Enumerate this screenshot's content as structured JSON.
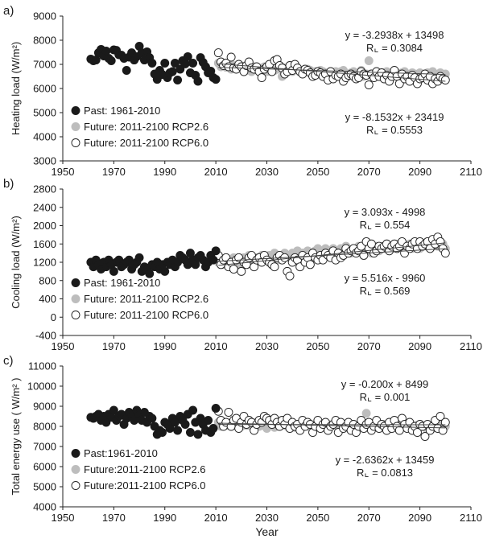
{
  "chart_data": [
    {
      "type": "scatter",
      "panel_label": "a)",
      "ylabel": "Heating load (W/m²)",
      "xlim": [
        1950,
        2110
      ],
      "ylim": [
        3000,
        9000
      ],
      "xticks": [
        1950,
        1970,
        1990,
        2010,
        2030,
        2050,
        2070,
        2090,
        2110
      ],
      "yticks": [
        3000,
        4000,
        5000,
        6000,
        7000,
        8000,
        9000
      ],
      "legend": [
        "Past: 1961-2010",
        "Future: 2011-2100 RCP2.6",
        "Future: 2011-2100 RCP6.0"
      ],
      "annotations": [
        {
          "eq": "y = -3.2938x + 13498",
          "r": "R⌞ = 0.3084"
        },
        {
          "eq": "y = -8.1532x + 23419",
          "r": "R⌞ = 0.5553"
        }
      ],
      "trend_lines": [
        {
          "x": [
            2011,
            2100
          ],
          "y": [
            6874,
            6581
          ]
        },
        {
          "x": [
            2011,
            2100
          ],
          "y": [
            7024,
            6298
          ]
        }
      ],
      "past": {
        "x_start": 1961,
        "values": [
          7220,
          7150,
          7180,
          7480,
          7620,
          7350,
          7550,
          7250,
          7150,
          7600,
          7580,
          7400,
          7380,
          7250,
          6750,
          7300,
          7480,
          7180,
          7320,
          7750,
          7480,
          7180,
          7520,
          7280,
          7050,
          6600,
          6380,
          6750,
          6580,
          7050,
          6450,
          6650,
          6700,
          7050,
          6350,
          6800,
          7150,
          7020,
          7320,
          6650,
          7050,
          6550,
          6300,
          7280,
          7080,
          6900,
          6650,
          6720,
          6450,
          6380
        ]
      },
      "rcp26": {
        "x_start": 2011,
        "values": [
          7050,
          6900,
          6950,
          6880,
          7050,
          6800,
          6950,
          6900,
          6850,
          6920,
          6800,
          6750,
          6880,
          6700,
          6900,
          6800,
          6750,
          6850,
          6900,
          6700,
          6850,
          6800,
          6750,
          6800,
          6900,
          6500,
          6850,
          6750,
          6800,
          6700,
          6800,
          6850,
          6750,
          6650,
          6700,
          6800,
          6750,
          6650,
          6700,
          6600,
          6750,
          6700,
          6650,
          6600,
          6700,
          6650,
          6700,
          6600,
          6700,
          6750,
          6600,
          6550,
          6650,
          6700,
          6600,
          6650,
          6750,
          6500,
          6600,
          7150,
          6600,
          6550,
          6650,
          6600,
          6550,
          6650,
          6700,
          6600,
          6500,
          6550,
          6650,
          6600,
          6650,
          6700,
          6500,
          6550,
          6650,
          6600,
          6550,
          6650,
          6600,
          6550,
          6650,
          6500,
          6700,
          6600,
          6550,
          6650,
          6550,
          6600
        ]
      },
      "rcp60": {
        "x_start": 2011,
        "values": [
          7480,
          7100,
          6950,
          7050,
          6900,
          7300,
          6850,
          6800,
          7000,
          6900,
          6700,
          6950,
          7100,
          6850,
          6800,
          6900,
          6700,
          6450,
          6800,
          6900,
          7000,
          6700,
          7150,
          7200,
          6950,
          6850,
          6600,
          6700,
          6950,
          6750,
          7000,
          6850,
          6700,
          6600,
          6800,
          6750,
          6650,
          6500,
          6550,
          6700,
          6650,
          6500,
          6600,
          6350,
          6700,
          6400,
          6550,
          6500,
          6600,
          6300,
          6450,
          6550,
          6600,
          6500,
          6400,
          6450,
          6700,
          6600,
          6550,
          6150,
          6600,
          6450,
          6700,
          6500,
          6650,
          6400,
          6550,
          6300,
          6500,
          6750,
          6500,
          6200,
          6600,
          6400,
          6500,
          6300,
          6550,
          6450,
          6200,
          6400,
          6450,
          6600,
          6350,
          6500,
          6200,
          6400,
          6300,
          6500,
          6400,
          6350
        ]
      }
    },
    {
      "type": "scatter",
      "panel_label": "b)",
      "ylabel": "Cooling load (W/m²)",
      "xlim": [
        1950,
        2110
      ],
      "ylim": [
        -400,
        2800
      ],
      "xticks": [
        1950,
        1970,
        1990,
        2010,
        2030,
        2050,
        2070,
        2090,
        2110
      ],
      "yticks": [
        -400,
        0,
        400,
        800,
        1200,
        1600,
        2000,
        2400,
        2800
      ],
      "legend": [
        "Past: 1961-2010",
        "Future: 2011-2100 RCP2.6",
        "Future: 2011-2100 RCP6.0"
      ],
      "annotations": [
        {
          "eq": "y = 3.093x - 4998",
          "r": "R⌞ = 0.554"
        },
        {
          "eq": "y = 5.516x - 9960",
          "r": "R⌞ = 0.569"
        }
      ],
      "trend_lines": [
        {
          "x": [
            2011,
            2100
          ],
          "y": [
            1221,
            1497
          ]
        },
        {
          "x": [
            2011,
            2100
          ],
          "y": [
            1131,
            1624
          ]
        }
      ],
      "past": {
        "x_start": 1961,
        "values": [
          1200,
          1100,
          1250,
          1150,
          1050,
          1200,
          1100,
          1250,
          1150,
          1000,
          1200,
          1250,
          1100,
          1150,
          1200,
          1250,
          1050,
          1150,
          1200,
          1300,
          1000,
          1100,
          1050,
          950,
          1150,
          1100,
          1200,
          1050,
          1150,
          1000,
          1200,
          1150,
          1250,
          1100,
          1200,
          1350,
          1300,
          1250,
          1150,
          1400,
          1250,
          1150,
          1300,
          1350,
          1250,
          1100,
          1200,
          1350,
          1250,
          1450
        ]
      },
      "rcp26": {
        "x_start": 2011,
        "values": [
          1200,
          1250,
          1150,
          1300,
          1200,
          1250,
          1300,
          1200,
          1150,
          1250,
          1300,
          1200,
          1350,
          1200,
          1250,
          1300,
          1250,
          1350,
          1300,
          1250,
          1350,
          1300,
          1400,
          1250,
          1350,
          1300,
          1400,
          1350,
          1300,
          1400,
          1350,
          1450,
          1300,
          1400,
          1350,
          1450,
          1400,
          1350,
          1450,
          1500,
          1350,
          1400,
          1500,
          1450,
          1400,
          1500,
          1350,
          1450,
          1500,
          1400,
          1550,
          1450,
          1400,
          1500,
          1450,
          1550,
          1500,
          1450,
          1500,
          1550,
          1400,
          1500,
          1550,
          1450,
          1500,
          1550,
          1600,
          1450,
          1500,
          1550,
          1500,
          1600,
          1550,
          1450,
          1550,
          1600,
          1500,
          1550,
          1600,
          1500,
          1550,
          1600,
          1650,
          1500,
          1550,
          1600,
          1550,
          1650,
          1600,
          1500
        ]
      },
      "rcp60": {
        "x_start": 2011,
        "values": [
          1350,
          1150,
          1250,
          1300,
          1100,
          1200,
          1050,
          1250,
          1300,
          1000,
          1200,
          1150,
          1300,
          1350,
          1100,
          1250,
          1300,
          1200,
          1350,
          1250,
          1200,
          1150,
          1100,
          1300,
          1350,
          1250,
          1300,
          1000,
          900,
          1200,
          1300,
          1250,
          1100,
          1350,
          1200,
          1300,
          1150,
          1400,
          1300,
          1250,
          1350,
          1250,
          1400,
          1350,
          1300,
          1450,
          1250,
          1400,
          1300,
          1350,
          1500,
          1400,
          1450,
          1500,
          1400,
          1450,
          1550,
          1350,
          1650,
          1500,
          1600,
          1400,
          1450,
          1550,
          1500,
          1550,
          1600,
          1450,
          1550,
          1600,
          1500,
          1550,
          1650,
          1400,
          1550,
          1500,
          1600,
          1650,
          1500,
          1650,
          1550,
          1600,
          1650,
          1500,
          1700,
          1600,
          1750,
          1650,
          1500,
          1400
        ]
      }
    },
    {
      "type": "scatter",
      "panel_label": "c)",
      "ylabel": "Total energy use ( W/m² )",
      "xlim": [
        1950,
        2110
      ],
      "ylim": [
        4000,
        11000
      ],
      "xticks": [
        1950,
        1970,
        1990,
        2010,
        2030,
        2050,
        2070,
        2090,
        2110
      ],
      "yticks": [
        4000,
        5000,
        6000,
        7000,
        8000,
        9000,
        10000,
        11000
      ],
      "xlabel": "Year",
      "legend": [
        "Past:1961-2010",
        "Future:2011-2100 RCP2.6",
        "Future:2011-2100 RCP6.0"
      ],
      "annotations": [
        {
          "eq": "y = -0.200x + 8499",
          "r": "R⌞ = 0.001"
        },
        {
          "eq": "y = -2.6362x + 13459",
          "r": "R⌞ = 0.0813"
        }
      ],
      "trend_lines": [
        {
          "x": [
            2011,
            2100
          ],
          "y": [
            8097,
            8079
          ]
        },
        {
          "x": [
            2011,
            2100
          ],
          "y": [
            8158,
            7923
          ]
        }
      ],
      "past": {
        "x_start": 1961,
        "values": [
          8450,
          8400,
          8500,
          8600,
          8300,
          8500,
          8200,
          8600,
          8450,
          8800,
          8300,
          8500,
          8600,
          8100,
          8400,
          8700,
          8500,
          8300,
          8800,
          8600,
          8300,
          8700,
          8200,
          8500,
          8400,
          8000,
          7600,
          7800,
          7700,
          8200,
          8100,
          7900,
          8400,
          8200,
          7800,
          8500,
          8300,
          8100,
          8600,
          7700,
          8800,
          8200,
          7600,
          8400,
          8100,
          7800,
          8300,
          7700,
          7900,
          8900
        ]
      },
      "rcp26": {
        "x_start": 2011,
        "values": [
          8200,
          8000,
          8100,
          8050,
          8150,
          8000,
          8100,
          8050,
          8200,
          8000,
          8100,
          8050,
          8150,
          8000,
          8100,
          8200,
          8000,
          8050,
          8100,
          7900,
          8050,
          8150,
          7950,
          8100,
          8000,
          8050,
          8150,
          8000,
          8100,
          8050,
          7950,
          8100,
          8000,
          8050,
          8150,
          8000,
          8100,
          7900,
          8050,
          8100,
          8000,
          8050,
          7950,
          8100,
          8000,
          8050,
          8100,
          7950,
          8050,
          8000,
          8100,
          7950,
          8050,
          8100,
          8000,
          8050,
          8100,
          7950,
          8650,
          8000,
          8050,
          8100,
          8000,
          7950,
          8050,
          8100,
          8000,
          8050,
          7950,
          8000,
          8100,
          8050,
          7950,
          8000,
          8050,
          8100,
          7950,
          8000,
          8050,
          8100,
          8000,
          7950,
          8050,
          8000,
          7900,
          8050,
          8000,
          8100,
          7950,
          8000
        ]
      },
      "rcp60": {
        "x_start": 2011,
        "values": [
          8750,
          8300,
          8000,
          8200,
          8700,
          8000,
          8300,
          8400,
          7900,
          8200,
          8500,
          8100,
          8300,
          8200,
          7800,
          8100,
          8300,
          8200,
          8500,
          8400,
          8300,
          8100,
          8400,
          8200,
          8000,
          8300,
          8100,
          8400,
          7900,
          8200,
          8000,
          8100,
          7800,
          8300,
          8000,
          8200,
          8100,
          7700,
          8000,
          8300,
          7900,
          8100,
          8200,
          7800,
          8000,
          8100,
          8300,
          7700,
          8200,
          7900,
          8000,
          8200,
          7800,
          8100,
          7700,
          8000,
          8300,
          7900,
          8100,
          8200,
          7800,
          8000,
          8300,
          7900,
          8100,
          8000,
          7800,
          8200,
          7900,
          8300,
          8000,
          7800,
          8400,
          8100,
          7900,
          8200,
          7800,
          8000,
          7700,
          8100,
          8000,
          7500,
          8100,
          7800,
          8000,
          8300,
          7900,
          8500,
          7800,
          8200
        ]
      }
    }
  ],
  "colors": {
    "past": "#1a1a1a",
    "rcp26": "#bdbdbd",
    "rcp60": "#ffffff",
    "axis": "#222222",
    "trend": "#444444"
  }
}
